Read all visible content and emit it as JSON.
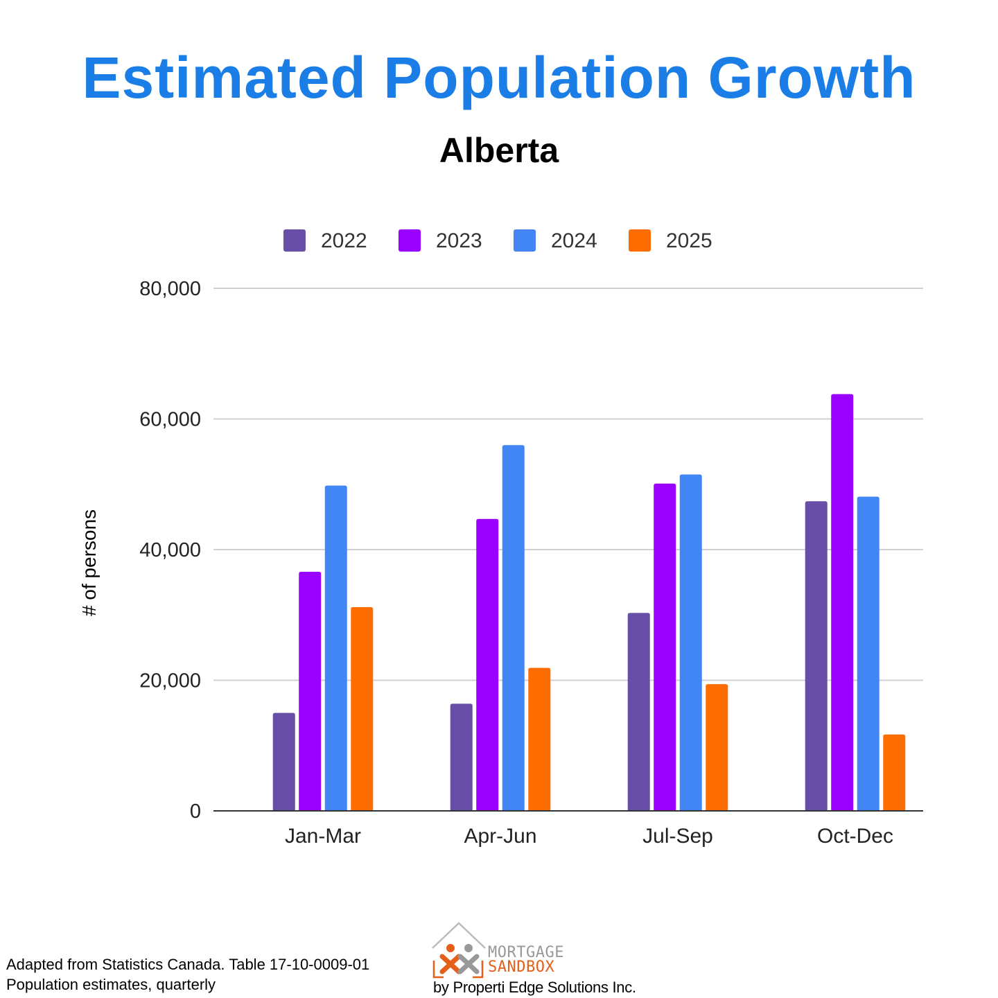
{
  "header": {
    "title": "Estimated Population Growth",
    "subtitle": "Alberta"
  },
  "chart_data": {
    "type": "bar",
    "title": "Estimated Population Growth",
    "subtitle": "Alberta",
    "xlabel": "",
    "ylabel": "# of persons",
    "categories": [
      "Jan-Mar",
      "Apr-Jun",
      "Jul-Sep",
      "Oct-Dec"
    ],
    "series": [
      {
        "name": "2022",
        "color": "#674ea7",
        "values": [
          15000,
          16400,
          30300,
          47400
        ]
      },
      {
        "name": "2023",
        "color": "#9900ff",
        "values": [
          36600,
          44700,
          50100,
          63800
        ]
      },
      {
        "name": "2024",
        "color": "#4285f4",
        "values": [
          49800,
          56000,
          51500,
          48100
        ]
      },
      {
        "name": "2025",
        "color": "#ff6d01",
        "values": [
          31200,
          21900,
          19400,
          11700
        ]
      }
    ],
    "ylim": [
      0,
      80000
    ],
    "yticks": [
      0,
      20000,
      40000,
      60000,
      80000
    ],
    "ytick_labels": [
      "0",
      "20,000",
      "40,000",
      "60,000",
      "80,000"
    ],
    "grid": true,
    "legend_position": "top-center"
  },
  "footer": {
    "source_line1": "Adapted from Statistics Canada. Table 17-10-0009-01",
    "source_line2": "Population estimates, quarterly"
  },
  "logo": {
    "word1": "MORTGAGE",
    "word2": "SANDBOX",
    "byline": "by Properti Edge Solutions Inc."
  }
}
